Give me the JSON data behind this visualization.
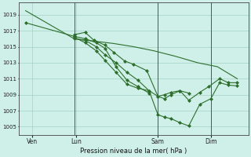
{
  "background_color": "#cff0e8",
  "grid_color": "#99ccbb",
  "line_color": "#2d6e2d",
  "marker_color": "#2d6e2d",
  "title": "Pression niveau de la mer( hPa )",
  "ylim": [
    1004.0,
    1020.5
  ],
  "yticks": [
    1005,
    1007,
    1009,
    1011,
    1013,
    1015,
    1017,
    1019
  ],
  "xtick_positions": [
    0.05,
    0.25,
    0.62,
    0.86
  ],
  "xlabel_labels": [
    "Ven",
    "Lun",
    "Sam",
    "Dim"
  ],
  "series": [
    {
      "x": [
        0.02,
        0.24,
        0.33,
        0.42,
        0.51,
        0.6,
        0.7,
        0.8,
        0.89,
        0.98
      ],
      "y": [
        1019.5,
        1016.0,
        1015.7,
        1015.4,
        1015.0,
        1014.5,
        1013.8,
        1013.0,
        1012.5,
        1011.0
      ],
      "marker": false
    },
    {
      "x": [
        0.24,
        0.29,
        0.33,
        0.38,
        0.42,
        0.47,
        0.51,
        0.57,
        0.62,
        0.65,
        0.68,
        0.72,
        0.76,
        0.81,
        0.85,
        0.9,
        0.94,
        0.98
      ],
      "y": [
        1016.5,
        1016.8,
        1015.8,
        1015.2,
        1014.3,
        1013.2,
        1012.8,
        1012.0,
        1008.8,
        1008.5,
        1009.0,
        1009.5,
        1008.3,
        1009.3,
        1010.0,
        1011.0,
        1010.5,
        1010.5
      ],
      "marker": true
    },
    {
      "x": [
        0.24,
        0.29,
        0.34,
        0.38,
        0.43,
        0.48,
        0.53,
        0.58,
        0.62,
        0.65,
        0.68,
        0.72,
        0.76,
        0.81,
        0.86,
        0.9,
        0.94,
        0.98
      ],
      "y": [
        1016.2,
        1015.5,
        1014.5,
        1013.3,
        1011.8,
        1010.3,
        1009.8,
        1009.5,
        1006.5,
        1006.2,
        1006.0,
        1005.5,
        1005.1,
        1007.8,
        1008.5,
        1010.5,
        1010.2,
        1010.1
      ],
      "marker": true
    },
    {
      "x": [
        0.24,
        0.29,
        0.34,
        0.38,
        0.43,
        0.48,
        0.53,
        0.58,
        0.62,
        0.65,
        0.68,
        0.72,
        0.76
      ],
      "y": [
        1016.0,
        1015.8,
        1015.0,
        1014.0,
        1013.0,
        1011.8,
        1010.8,
        1009.5,
        1008.8,
        1009.0,
        1009.3,
        1009.5,
        1009.2
      ],
      "marker": true
    },
    {
      "x": [
        0.02,
        0.24,
        0.29,
        0.34,
        0.38,
        0.43,
        0.48,
        0.53,
        0.58
      ],
      "y": [
        1018.0,
        1016.3,
        1016.0,
        1015.5,
        1014.8,
        1012.5,
        1010.8,
        1010.0,
        1009.2
      ],
      "marker": true
    }
  ],
  "vlines": [
    0.24,
    0.62,
    0.86
  ],
  "xlim": [
    -0.01,
    1.03
  ]
}
